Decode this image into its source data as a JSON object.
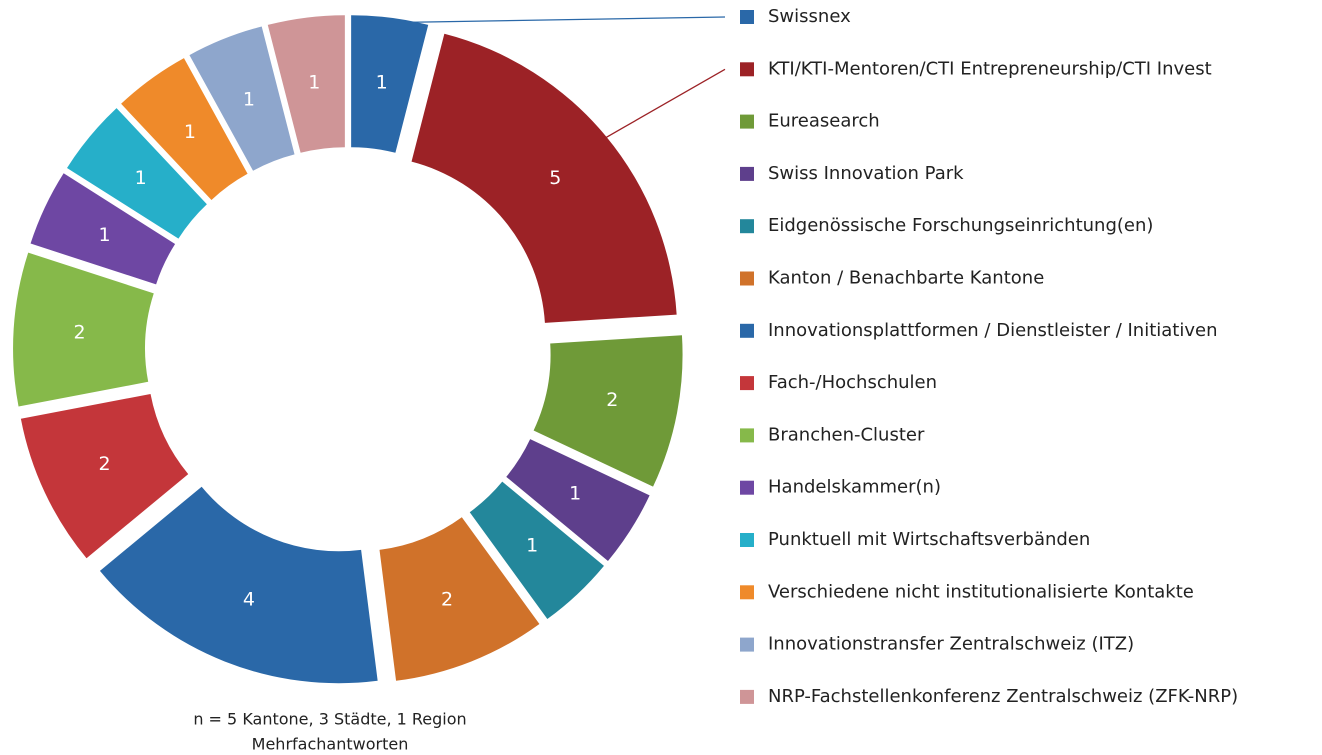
{
  "chart_data": {
    "type": "donut",
    "categories": [
      "Swissnex",
      "KTI/KTI-Mentoren/CTI Entrepreneurship/CTI Invest",
      "Eureasearch",
      "Swiss Innovation Park",
      "Eidgenössische Forschungseinrichtung(en)",
      "Kanton / Benachbarte Kantone",
      "Innovationsplattformen / Dienstleister / Initiativen",
      "Fach-/Hochschulen",
      "Branchen-Cluster",
      "Handelskammer(n)",
      "Punktuell mit Wirtschaftsverbänden",
      "Verschiedene nicht institutionalisierte Kontakte",
      "Innovationstransfer Zentralschweiz (ITZ)",
      "NRP-Fachstellenkonferenz Zentralschweiz (ZFK-NRP)"
    ],
    "values": [
      1,
      5,
      2,
      1,
      1,
      2,
      4,
      2,
      2,
      1,
      1,
      1,
      1,
      1
    ],
    "colors": [
      "#2a68a8",
      "#9c2226",
      "#6f9a38",
      "#5e3f8c",
      "#23879b",
      "#d0722a",
      "#2a68a8",
      "#c4363a",
      "#86b94a",
      "#6e47a3",
      "#26afc9",
      "#ef8a2a",
      "#8ea6cc",
      "#cf9597"
    ],
    "legend": "right",
    "annotations": [
      "n = 5 Kantone, 3 Städte, 1 Region",
      "Mehrfachantworten"
    ]
  }
}
